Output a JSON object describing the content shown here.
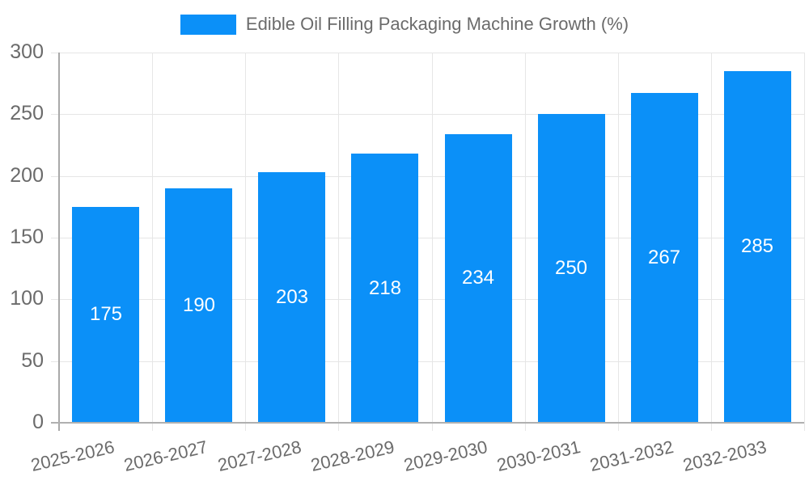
{
  "chart_data": {
    "type": "bar",
    "title": "Edible Oil Filling Packaging Machine Growth (%)",
    "categories": [
      "2025-2026",
      "2026-2027",
      "2027-2028",
      "2028-2029",
      "2029-2030",
      "2030-2031",
      "2031-2032",
      "2032-2033"
    ],
    "values": [
      175,
      190,
      203,
      218,
      234,
      250,
      267,
      285
    ],
    "series_name": "Edible Oil Filling Packaging Machine Growth (%)",
    "xlabel": "",
    "ylabel": "",
    "ylim": [
      0,
      300
    ],
    "ytick_step": 50,
    "yticks": [
      0,
      50,
      100,
      150,
      200,
      250,
      300
    ],
    "grid": true,
    "legend_position": "top",
    "x_label_rotation": -13,
    "colors": {
      "bar": "#0b90f8",
      "bar_value_text": "#ffffff",
      "axis_text": "#6b6b6b",
      "gridline": "#e6e6e6",
      "axis_line": "#aaaaaa"
    }
  }
}
